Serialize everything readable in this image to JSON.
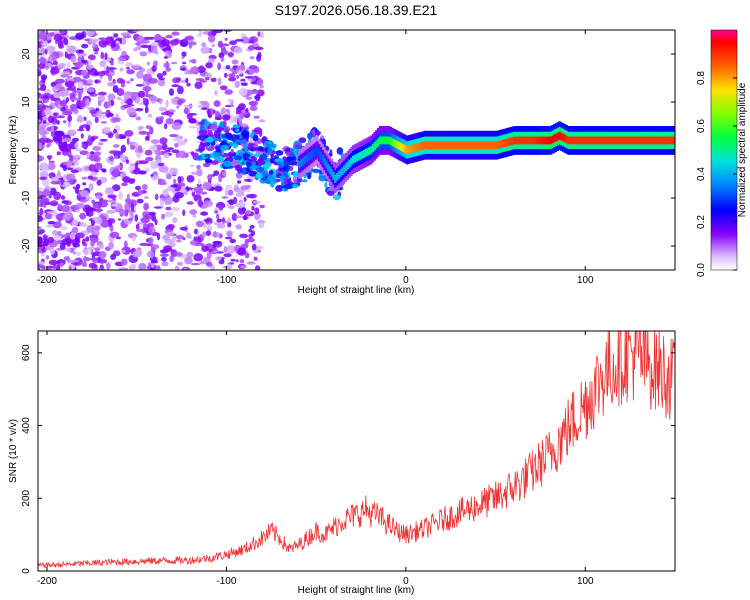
{
  "title": "S197.2026.056.18.39.E21",
  "chart_data": [
    {
      "type": "heatmap",
      "title": "",
      "xlabel": "Height of straight line (km)",
      "ylabel": "Frequency (Hz)",
      "xlim": [
        -205,
        150
      ],
      "ylim": [
        -25,
        25
      ],
      "xticks": [
        "-200",
        "-100",
        "0",
        "100"
      ],
      "xtick_values": [
        -200,
        -100,
        0,
        100
      ],
      "yticks": [
        "-20",
        "-10",
        "0",
        "10",
        "20"
      ],
      "ytick_values": [
        -20,
        -10,
        0,
        10,
        20
      ],
      "colorbar": {
        "label": "Normalized spectral amplitude",
        "range": [
          0,
          1
        ],
        "ticks": [
          "0.0",
          "0.2",
          "0.4",
          "0.6",
          "0.8"
        ],
        "tick_values": [
          0.0,
          0.2,
          0.4,
          0.6,
          0.8
        ]
      },
      "ridge": {
        "description_x": [
          -110,
          -100,
          -90,
          -80,
          -70,
          -60,
          -50,
          -45,
          -40,
          -35,
          -30,
          -20,
          -15,
          -10,
          -5,
          0,
          10,
          20,
          30,
          40,
          50,
          60,
          70,
          80,
          85,
          90,
          100,
          110,
          120,
          130,
          140,
          150
        ],
        "frequency": [
          2,
          1,
          0,
          -2,
          -4,
          -3,
          0,
          -3,
          -6,
          -4,
          -2,
          0,
          2,
          2,
          1,
          0,
          1,
          1,
          1,
          1,
          1,
          2,
          2,
          2,
          3,
          2,
          2,
          2,
          2,
          2,
          2,
          2
        ],
        "amplitude": [
          0.2,
          0.2,
          0.25,
          0.3,
          0.35,
          0.35,
          0.3,
          0.35,
          0.4,
          0.4,
          0.45,
          0.5,
          0.55,
          0.55,
          0.7,
          0.8,
          0.85,
          0.85,
          0.85,
          0.85,
          0.85,
          0.9,
          0.9,
          0.95,
          0.95,
          0.9,
          0.9,
          0.9,
          0.9,
          0.9,
          0.9,
          0.9
        ]
      }
    },
    {
      "type": "line",
      "title": "",
      "xlabel": "Height of straight line (km)",
      "ylabel": "SNR (10 * v/v)",
      "xlim": [
        -205,
        150
      ],
      "ylim": [
        0,
        660
      ],
      "xticks": [
        "-200",
        "-100",
        "0",
        "100"
      ],
      "xtick_values": [
        -200,
        -100,
        0,
        100
      ],
      "yticks": [
        "0",
        "200",
        "400",
        "600"
      ],
      "ytick_values": [
        0,
        200,
        400,
        600
      ],
      "color": "#ee3333",
      "series": [
        {
          "name": "SNR",
          "x": [
            -205,
            -190,
            -175,
            -160,
            -140,
            -120,
            -110,
            -100,
            -90,
            -80,
            -75,
            -70,
            -65,
            -60,
            -55,
            -50,
            -45,
            -40,
            -35,
            -30,
            -25,
            -22,
            -20,
            -15,
            -10,
            -5,
            0,
            10,
            20,
            30,
            40,
            50,
            60,
            70,
            80,
            90,
            100,
            110,
            120,
            125,
            130,
            140,
            150
          ],
          "y": [
            15,
            18,
            22,
            25,
            28,
            30,
            35,
            45,
            60,
            90,
            110,
            90,
            60,
            70,
            90,
            110,
            100,
            120,
            140,
            150,
            160,
            170,
            160,
            150,
            130,
            110,
            100,
            115,
            140,
            160,
            180,
            200,
            230,
            270,
            320,
            390,
            460,
            540,
            590,
            600,
            590,
            560,
            520
          ]
        }
      ]
    }
  ]
}
